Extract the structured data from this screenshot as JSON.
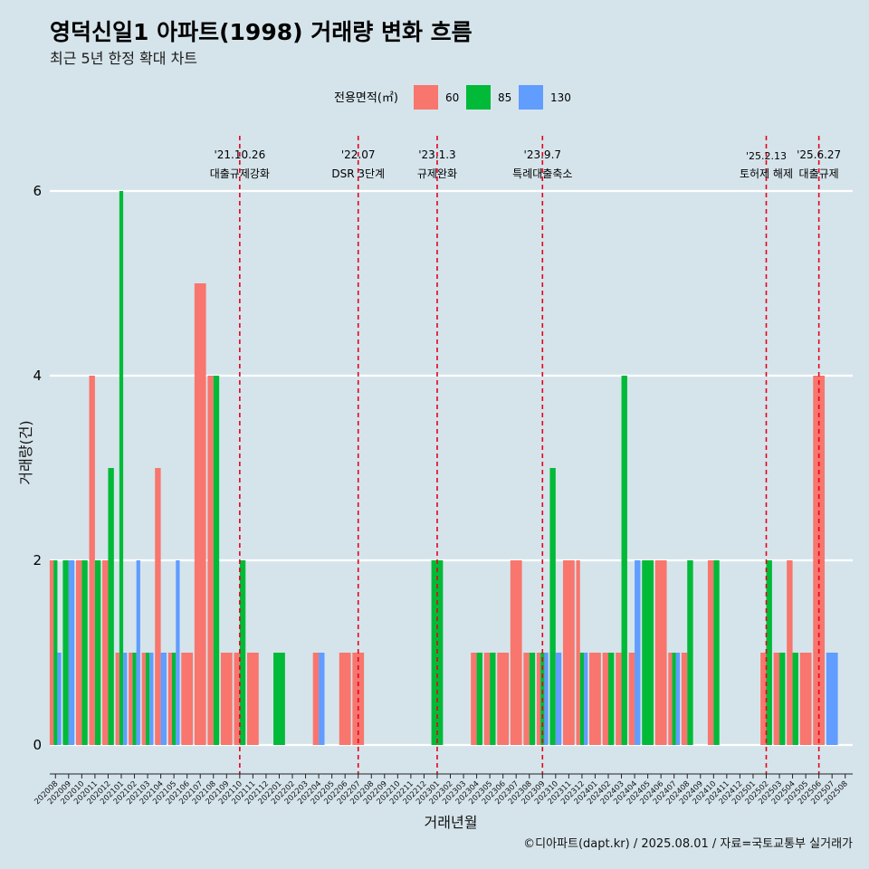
{
  "title": "영덕신일1 아파트(1998) 거래량 변화 흐름",
  "subtitle": "최근 5년 한정 확대 차트",
  "caption": "©디아파트(dapt.kr) / 2025.08.01 / 자료=국토교통부 실거래가",
  "colors": {
    "background": "#d5e4eb",
    "60": "#f8766d",
    "85": "#00ba38",
    "130": "#619cff",
    "event_line": "#e8001c",
    "grid": "#ffffff"
  },
  "chart_data": {
    "type": "bar",
    "title": "영덕신일1 아파트(1998) 거래량 변화 흐름",
    "subtitle": "최근 5년 한정 확대 차트",
    "xlabel": "거래년월",
    "ylabel": "거래량(건)",
    "ylim": [
      0,
      6.3
    ],
    "yticks": [
      0,
      2,
      4,
      6
    ],
    "grid": "horizontal",
    "legend": {
      "title": "전용면적(㎡)",
      "position": "top",
      "entries": [
        "60",
        "85",
        "130"
      ]
    },
    "categories": [
      "202008",
      "202009",
      "202010",
      "202011",
      "202012",
      "202101",
      "202102",
      "202103",
      "202104",
      "202105",
      "202106",
      "202107",
      "202108",
      "202109",
      "202110",
      "202111",
      "202112",
      "202201",
      "202202",
      "202203",
      "202204",
      "202205",
      "202206",
      "202207",
      "202208",
      "202209",
      "202210",
      "202211",
      "202212",
      "202301",
      "202302",
      "202303",
      "202304",
      "202305",
      "202306",
      "202307",
      "202308",
      "202309",
      "202310",
      "202311",
      "202312",
      "202401",
      "202402",
      "202403",
      "202404",
      "202405",
      "202406",
      "202407",
      "202408",
      "202409",
      "202410",
      "202411",
      "202412",
      "202501",
      "202502",
      "202503",
      "202504",
      "202505",
      "202506",
      "202507",
      "202508"
    ],
    "series": [
      {
        "name": "60",
        "values": [
          2,
          0,
          2,
          4,
          2,
          1,
          1,
          1,
          3,
          1,
          1,
          5,
          4,
          1,
          1,
          1,
          0,
          0,
          0,
          0,
          1,
          0,
          1,
          1,
          0,
          0,
          0,
          0,
          0,
          0,
          0,
          0,
          1,
          1,
          1,
          2,
          1,
          1,
          0,
          2,
          2,
          1,
          1,
          1,
          1,
          0,
          2,
          1,
          1,
          0,
          2,
          0,
          0,
          0,
          1,
          1,
          2,
          1,
          4,
          0,
          0
        ]
      },
      {
        "name": "85",
        "values": [
          2,
          2,
          2,
          2,
          3,
          6,
          1,
          1,
          0,
          1,
          0,
          0,
          4,
          0,
          2,
          0,
          0,
          1,
          0,
          0,
          0,
          0,
          0,
          0,
          0,
          0,
          0,
          0,
          0,
          2,
          0,
          0,
          1,
          1,
          0,
          0,
          1,
          1,
          3,
          0,
          1,
          0,
          1,
          4,
          0,
          2,
          0,
          1,
          2,
          0,
          2,
          0,
          0,
          0,
          2,
          1,
          1,
          0,
          0,
          0,
          0
        ]
      },
      {
        "name": "130",
        "values": [
          1,
          2,
          0,
          0,
          0,
          1,
          2,
          1,
          1,
          2,
          0,
          0,
          0,
          0,
          0,
          0,
          0,
          0,
          0,
          0,
          1,
          0,
          0,
          0,
          0,
          0,
          0,
          0,
          0,
          0,
          0,
          0,
          0,
          0,
          0,
          0,
          0,
          1,
          1,
          0,
          1,
          0,
          0,
          0,
          2,
          0,
          0,
          1,
          0,
          0,
          0,
          0,
          0,
          0,
          0,
          0,
          0,
          0,
          0,
          1,
          0
        ]
      }
    ],
    "events": [
      {
        "position": "202110",
        "date": "'21.10.26",
        "label": "대출규제강화"
      },
      {
        "position": "202207",
        "date": "'22.07",
        "label": "DSR 3단계"
      },
      {
        "position": "202301",
        "date": "'23.1.3",
        "label": "규제완화"
      },
      {
        "position": "202309",
        "date": "'23.9.7",
        "label": "특례대출축소"
      },
      {
        "position": "202502",
        "date": "'25.2.13",
        "label": "토허제 해제"
      },
      {
        "position": "202506",
        "date": "'25.6.27",
        "label": "대출규제"
      }
    ]
  }
}
